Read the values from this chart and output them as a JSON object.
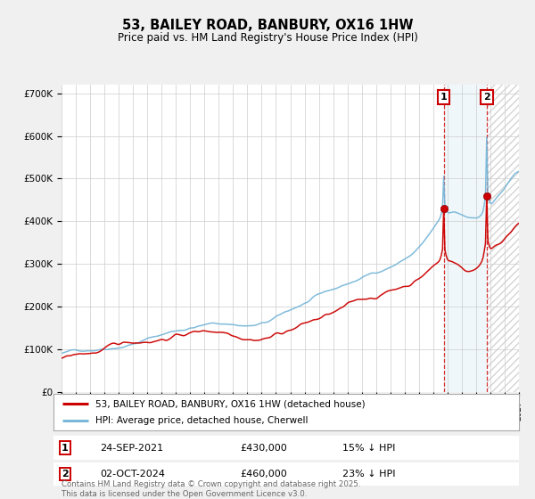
{
  "title": "53, BAILEY ROAD, BANBURY, OX16 1HW",
  "subtitle": "Price paid vs. HM Land Registry's House Price Index (HPI)",
  "ylim": [
    0,
    720000
  ],
  "yticks": [
    0,
    100000,
    200000,
    300000,
    400000,
    500000,
    600000,
    700000
  ],
  "ytick_labels": [
    "£0",
    "£100K",
    "£200K",
    "£300K",
    "£400K",
    "£500K",
    "£600K",
    "£700K"
  ],
  "hpi_color": "#7ab8d9",
  "price_color": "#cc0000",
  "marker1_date": "24-SEP-2021",
  "marker1_price": 430000,
  "marker1_pct": "15% ↓ HPI",
  "marker1_x": 2021.73,
  "marker2_date": "02-OCT-2024",
  "marker2_price": 460000,
  "marker2_pct": "23% ↓ HPI",
  "marker2_x": 2024.75,
  "legend_line1": "53, BAILEY ROAD, BANBURY, OX16 1HW (detached house)",
  "legend_line2": "HPI: Average price, detached house, Cherwell",
  "footnote": "Contains HM Land Registry data © Crown copyright and database right 2025.\nThis data is licensed under the Open Government Licence v3.0.",
  "bg_color": "#f0f0f0",
  "plot_bg_color": "#ffffff",
  "xmin": 1995,
  "xmax": 2027
}
